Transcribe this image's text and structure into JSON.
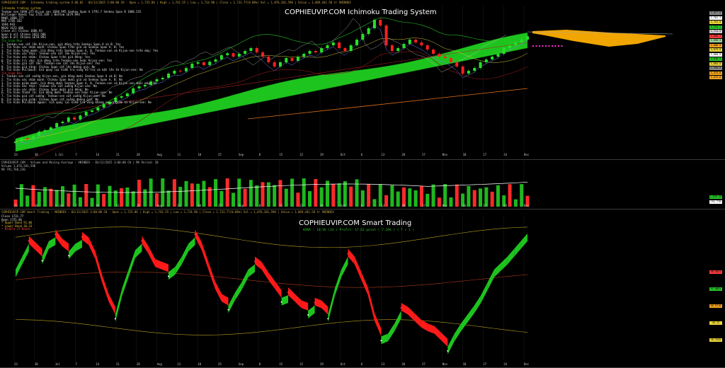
{
  "header_main": "COPHIEUVIP.COM - Ichimoku trading system V.06.02 - 03/12/2025 3:00:00 CH - Open = 1,725.86 | High = 1,741.55 | Low = 1,714.90 | Close = 1,731.77(0.88%) Vol = 1,076,201,598 | Value = 1,069,441.58 tr    VNINDEX",
  "header_volume": "COPHIEUVIP.COM - Volume and Moving Average - VNINDEX - 03/12/2025 3:00:00 CH | MA Period: 20",
  "volume_line1": "Volume 1,076,201,598",
  "volume_line2": "MA 791,768,230",
  "header_smart": "COPHIEUVIP.COM Smart Trading - VNINDEX - 03/12/2025 3:00:00 CH - Open = 1,725.86 | High = 1,741.55 | Low = 1,714.90 | Close = 1,731.77(0.88%) Vol = 1,076,201,598 | Value = 1,069,441.58 tr    VNINDEX",
  "watermark_main": "COPHIEUVIP.COM Ichimoku Trading System",
  "watermark_smart": "COPHIEUVIP.COM Smart Trading",
  "smart_stats": "WINA : 14/16 (14 ) Profit: 17.62 point ( 7.28% ) ( T + 1 )",
  "ichimoku_info": {
    "title": "Ichimoku trading system",
    "lines": [
      {
        "cls": "c",
        "text": "Tenkan sen 1690.375  Kijun sen 1660.995  Senkou Span A 1791.7  Senkou Span B 1686.155"
      },
      {
        "cls": "c",
        "text": "Bollinger Bands Top 1732.349 | Bottom 1679.993"
      },
      {
        "cls": "c",
        "text": "MA05 1698.777"
      },
      {
        "cls": "c",
        "text": "MA5  1705.182"
      },
      {
        "cls": "c",
        "text": "     1694.943"
      },
      {
        "cls": "c",
        "text": "MA20 1672.066"
      },
      {
        "cls": "c",
        "text": "Close all Chikou  1686.93"
      },
      {
        "cls": "c",
        "text": "Span A all Chikou 1652.506"
      },
      {
        "cls": "c",
        "text": "Span B all Chikou 1670.993"
      },
      {
        "cls": "g",
        "text": "Tín hiệu Mua"
      },
      {
        "cls": "c",
        "text": "1. Tenkan-sen cắt lên Kijun-sen, giá đóng trên Senkou Span A và B: Yes"
      },
      {
        "cls": "c",
        "text": "2. Tín hiệu xác nhận mạnh: Chikou Span trên giá và Senkou Span A, B: Yes"
      },
      {
        "cls": "c",
        "text": "3. Tín hiệu tăng mạnh: Giá đóng trên Senkou Span A, B, Tenkan-sen và Kijun-sen trên mây: Yes"
      },
      {
        "cls": "c",
        "text": "4. Tín hiệu xác thực: Tenkan-sen cắt lên Kijun-sen: Yes"
      },
      {
        "cls": "c",
        "text": "5. Tín hiệu xác nhận: Chikou Span trên giá đóng: Yes"
      },
      {
        "cls": "c",
        "text": "6. Tín hiệu trì vào: Giá đóng trên Tenkan-sen hoặc Kijun-sen: Yes"
      },
      {
        "cls": "c",
        "text": "7. Tín hiệu giá cắt lên: Tenkan-sen cắt lên Kijun-sen: Yes"
      },
      {
        "cls": "c",
        "text": "8. Tín hiệu giá tăng: Chikou Span cắt lên đường giá: No"
      },
      {
        "cls": "c",
        "text": "9. Tín hiệu Pullback: Giá quay lại kiểm tra vùng hỗ trợ và bật lên từ Kijun-sen: No"
      },
      {
        "cls": "r",
        "text": "Tín hiệu Bán"
      },
      {
        "cls": "c",
        "text": "1. Tenkan-sen cắt xuống Kijun-sen, giá đóng dưới Senkou Span A và B: No"
      },
      {
        "cls": "c",
        "text": "2. Tín hiệu xác nhận mạnh: Chikou Span dưới giá và Senkou Span A, B: No"
      },
      {
        "cls": "c",
        "text": "3. Tín hiệu giảm mạnh: Giá đóng dưới Senkou Span A, B, Tenkan-sen và Kijun-sen dưới mây: No"
      },
      {
        "cls": "c",
        "text": "4. Tín hiệu xác thực: Tenkan-sen cắt xuống Kijun-sen: No"
      },
      {
        "cls": "c",
        "text": "5. Tín hiệu xác nhận: Chikou Span dưới giá đóng: No"
      },
      {
        "cls": "c",
        "text": "6. Tín hiệu thoát ra: Giá đóng dưới Tenkan-sen hoặc Kijun-sen: No"
      },
      {
        "cls": "c",
        "text": "7. Tín hiệu giá cắt xuống: Tenkan-sen cắt xuống Kijun-sen: No"
      },
      {
        "cls": "c",
        "text": "8. Tín hiệu giá giảm: Chikou Span cắt xuống đường giá: No"
      },
      {
        "cls": "c",
        "text": "9. Tín hiệu Pullback ngược: Giá quay lại kiểm tra vùng kháng cự và giảm từ Kijun-sen: No"
      }
    ]
  },
  "smart_info": [
    {
      "cls": "c",
      "text": "Close  1731.77"
    },
    {
      "cls": "c",
      "text": "Open   1725.86"
    },
    {
      "cls": "t",
      "text": "* Upper Band  91.06"
    },
    {
      "cls": "t",
      "text": "* Lower Band  36.33"
    },
    {
      "cls": "r",
      "text": "* Middle of Bands  --"
    }
  ],
  "price_tags": [
    {
      "text": "1,817.8",
      "color": "#8a8a8a"
    },
    {
      "text": "1,781.7",
      "color": "#ffffff"
    },
    {
      "text": "1,741.5",
      "color": "#e8d33a"
    },
    {
      "text": "1,731.7",
      "color": "#27c227"
    },
    {
      "text": "1,714.9",
      "color": "#cfcfcf"
    },
    {
      "text": "1,698.7",
      "color": "#ff3b3b"
    },
    {
      "text": "1,690.3",
      "color": "#9ad29a"
    },
    {
      "text": "1,686.9",
      "color": "#f0a020"
    },
    {
      "text": "1,679.9",
      "color": "#e8d33a"
    },
    {
      "text": "1,660.9",
      "color": "#ffffff"
    },
    {
      "text": "1,640.2",
      "color": "#27c227"
    },
    {
      "text": "1,604.0",
      "color": "#e8d33a"
    },
    {
      "text": "1,590.8",
      "color": "#8a8a8a"
    },
    {
      "text": "1,575.0",
      "color": "#f0a020"
    },
    {
      "text": "1,472.0",
      "color": "#f0a020"
    }
  ],
  "volume_tags": [
    {
      "text": "1,076.2M",
      "color": "#27c227"
    },
    {
      "text": "791.77M",
      "color": "#ffffff"
    }
  ],
  "smart_tags": [
    {
      "text": "98.8651",
      "color": "#ff3b3b"
    },
    {
      "text": "91.0681",
      "color": "#27c227"
    },
    {
      "text": "66.9710",
      "color": "#f0a020"
    },
    {
      "text": "46.12",
      "color": "#e8d33a"
    },
    {
      "text": "36.3335",
      "color": "#e8d33a"
    }
  ],
  "x_axis_top": [
    "23",
    "30",
    "1 Jul",
    "7",
    "14",
    "21",
    "28",
    "Aug",
    "11",
    "18",
    "25",
    "Sep",
    "8",
    "15",
    "22",
    "29",
    "Oct",
    "6",
    "13",
    "20",
    "27",
    "Nov",
    "10",
    "17",
    "24",
    "Dec"
  ],
  "x_axis_mid": [
    "23",
    "30",
    "1 Jul",
    "7",
    "14",
    "21",
    "28",
    "Aug",
    "11",
    "18",
    "25",
    "Sep",
    "8",
    "15",
    "22",
    "29",
    "Oct",
    "6",
    "13",
    "20",
    "27",
    "Nov",
    "10",
    "17",
    "24",
    "Dec"
  ],
  "x_axis_bottom": [
    "23",
    "30",
    "Jul",
    "7",
    "14",
    "21",
    "28",
    "Aug",
    "11",
    "18",
    "25",
    "Sep",
    "8",
    "15",
    "22",
    "29",
    "Oct",
    "6",
    "13",
    "20",
    "27",
    "Nov",
    "10",
    "17",
    "24",
    "Dec"
  ],
  "chart_data": [
    {
      "type": "candlestick",
      "title": "COPHIEUVIP.COM Ichimoku Trading System",
      "symbol": "VNINDEX",
      "close_series": [
        1360,
        1372,
        1368,
        1380,
        1395,
        1400,
        1410,
        1425,
        1430,
        1445,
        1438,
        1452,
        1465,
        1470,
        1480,
        1492,
        1500,
        1515,
        1520,
        1530,
        1548,
        1555,
        1560,
        1572,
        1580,
        1585,
        1600,
        1610,
        1608,
        1620,
        1635,
        1640,
        1630,
        1642,
        1650,
        1665,
        1672,
        1660,
        1670,
        1680,
        1690,
        1675,
        1660,
        1640,
        1625,
        1640,
        1655,
        1645,
        1660,
        1670,
        1680,
        1675,
        1690,
        1700,
        1710,
        1690,
        1680,
        1700,
        1720,
        1740,
        1760,
        1790,
        1770,
        1700,
        1680,
        1690,
        1705,
        1720,
        1710,
        1700,
        1685,
        1670,
        1660,
        1655,
        1640,
        1625,
        1600,
        1610,
        1620,
        1640,
        1650,
        1660,
        1670,
        1690,
        1700,
        1710,
        1720,
        1731.77
      ],
      "ylim": [
        1330,
        1830
      ],
      "last": {
        "open": 1725.86,
        "high": 1741.55,
        "low": 1714.9,
        "close": 1731.77,
        "change_pct": 0.88
      }
    },
    {
      "type": "bar",
      "title": "Volume and Moving Average",
      "ma_period": 20,
      "last_volume": 1076201598,
      "last_ma": 791768230
    },
    {
      "type": "line",
      "title": "COPHIEUVIP.COM Smart Trading",
      "series_values": [
        70,
        80,
        90,
        85,
        80,
        92,
        95,
        88,
        84,
        90,
        93,
        89,
        78,
        60,
        45,
        35,
        55,
        70,
        85,
        90,
        82,
        72,
        70,
        68,
        72,
        80,
        90,
        95,
        85,
        70,
        55,
        45,
        42,
        52,
        60,
        70,
        74,
        70,
        62,
        55,
        48,
        50,
        45,
        40,
        38,
        42,
        40,
        35,
        55,
        70,
        80,
        74,
        62,
        50,
        30,
        18,
        20,
        28,
        38,
        35,
        30,
        25,
        22,
        20,
        15,
        10,
        20,
        28,
        35,
        42,
        50,
        60,
        70,
        75,
        80,
        86,
        92,
        98
      ],
      "ylim": [
        0,
        110
      ],
      "upper_band": 91.06,
      "lower_band": 36.33
    }
  ]
}
